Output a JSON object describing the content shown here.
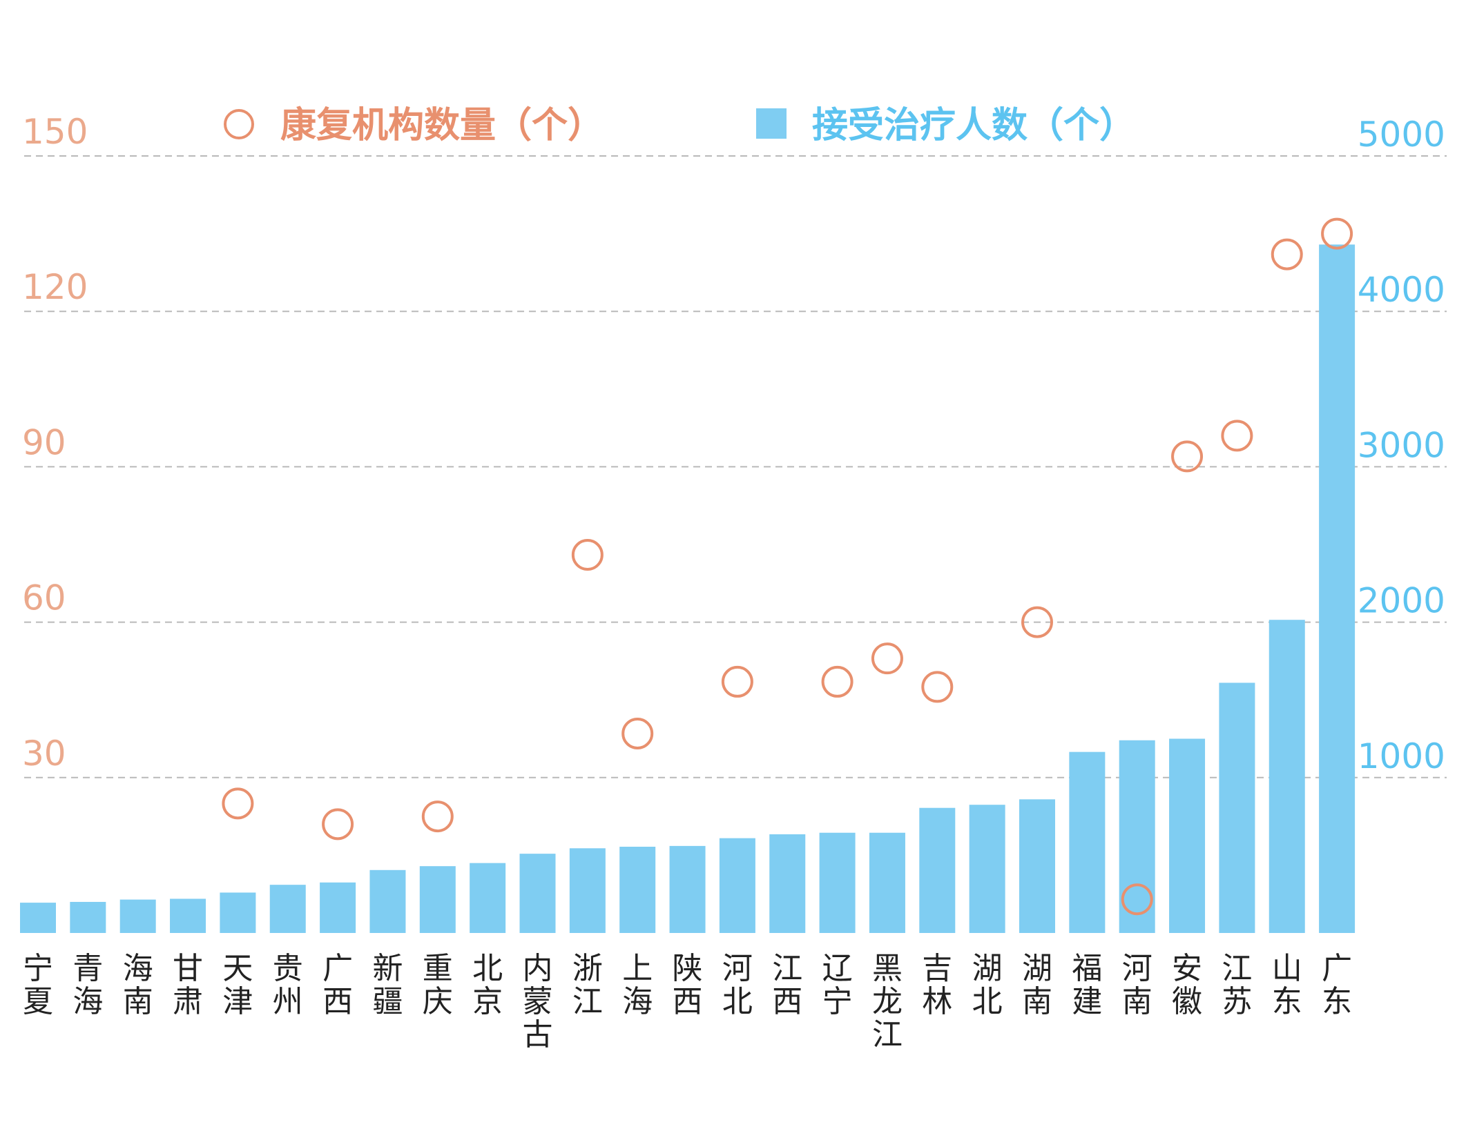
{
  "colors": {
    "bar": "#7FCDF2",
    "circle": "#E8906E",
    "left_axis": "#EBA98C",
    "right_axis": "#5CC3F0",
    "grid": "#B9B9B9"
  },
  "chart_data": {
    "type": "bar",
    "title": "",
    "xlabel": "",
    "legend": {
      "placement": "top",
      "circle_label": "康复机构数量（个）",
      "bar_label": "接受治疗人数（个）"
    },
    "y_left": {
      "ylim": [
        0,
        150
      ],
      "ticks": [
        "30",
        "60",
        "90",
        "120",
        "150"
      ],
      "series_ref": "康复机构数量（个）"
    },
    "y_right": {
      "ylim": [
        0,
        5000
      ],
      "ticks": [
        "1000",
        "2000",
        "3000",
        "4000",
        "5000"
      ],
      "series_ref": "接受治疗人数（个）"
    },
    "grid": true,
    "categories": [
      "宁夏",
      "青海",
      "海南",
      "甘肃",
      "天津",
      "贵州",
      "广西",
      "新疆",
      "重庆",
      "北京",
      "内蒙古",
      "浙江",
      "上海",
      "陕西",
      "河北",
      "江西",
      "辽宁",
      "黑龙江",
      "吉林",
      "湖北",
      "湖南",
      "福建",
      "河南",
      "安徽",
      "江苏",
      "山东",
      "广东"
    ],
    "series": [
      {
        "name": "接受治疗人数（个）",
        "type": "bar",
        "axis": "right",
        "values": [
          195,
          200,
          215,
          220,
          260,
          310,
          325,
          405,
          430,
          450,
          510,
          545,
          555,
          560,
          610,
          635,
          645,
          645,
          805,
          825,
          860,
          1165,
          1240,
          1250,
          1610,
          2015,
          4430
        ]
      },
      {
        "name": "康复机构数量（个）",
        "type": "scatter",
        "axis": "left",
        "points": [
          {
            "category": "天津",
            "value": 25
          },
          {
            "category": "广西",
            "value": 21
          },
          {
            "category": "重庆",
            "value": 22.5
          },
          {
            "category": "浙江",
            "value": 73
          },
          {
            "category": "上海",
            "value": 38.5
          },
          {
            "category": "河北",
            "value": 48.5
          },
          {
            "category": "辽宁",
            "value": 48.5
          },
          {
            "category": "黑龙江",
            "value": 53
          },
          {
            "category": "吉林",
            "value": 47.5
          },
          {
            "category": "湖南",
            "value": 60
          },
          {
            "category": "河南",
            "value": 6.5
          },
          {
            "category": "安徽",
            "value": 92
          },
          {
            "category": "江苏",
            "value": 96
          },
          {
            "category": "山东",
            "value": 131
          },
          {
            "category": "广东",
            "value": 135
          }
        ]
      }
    ]
  }
}
